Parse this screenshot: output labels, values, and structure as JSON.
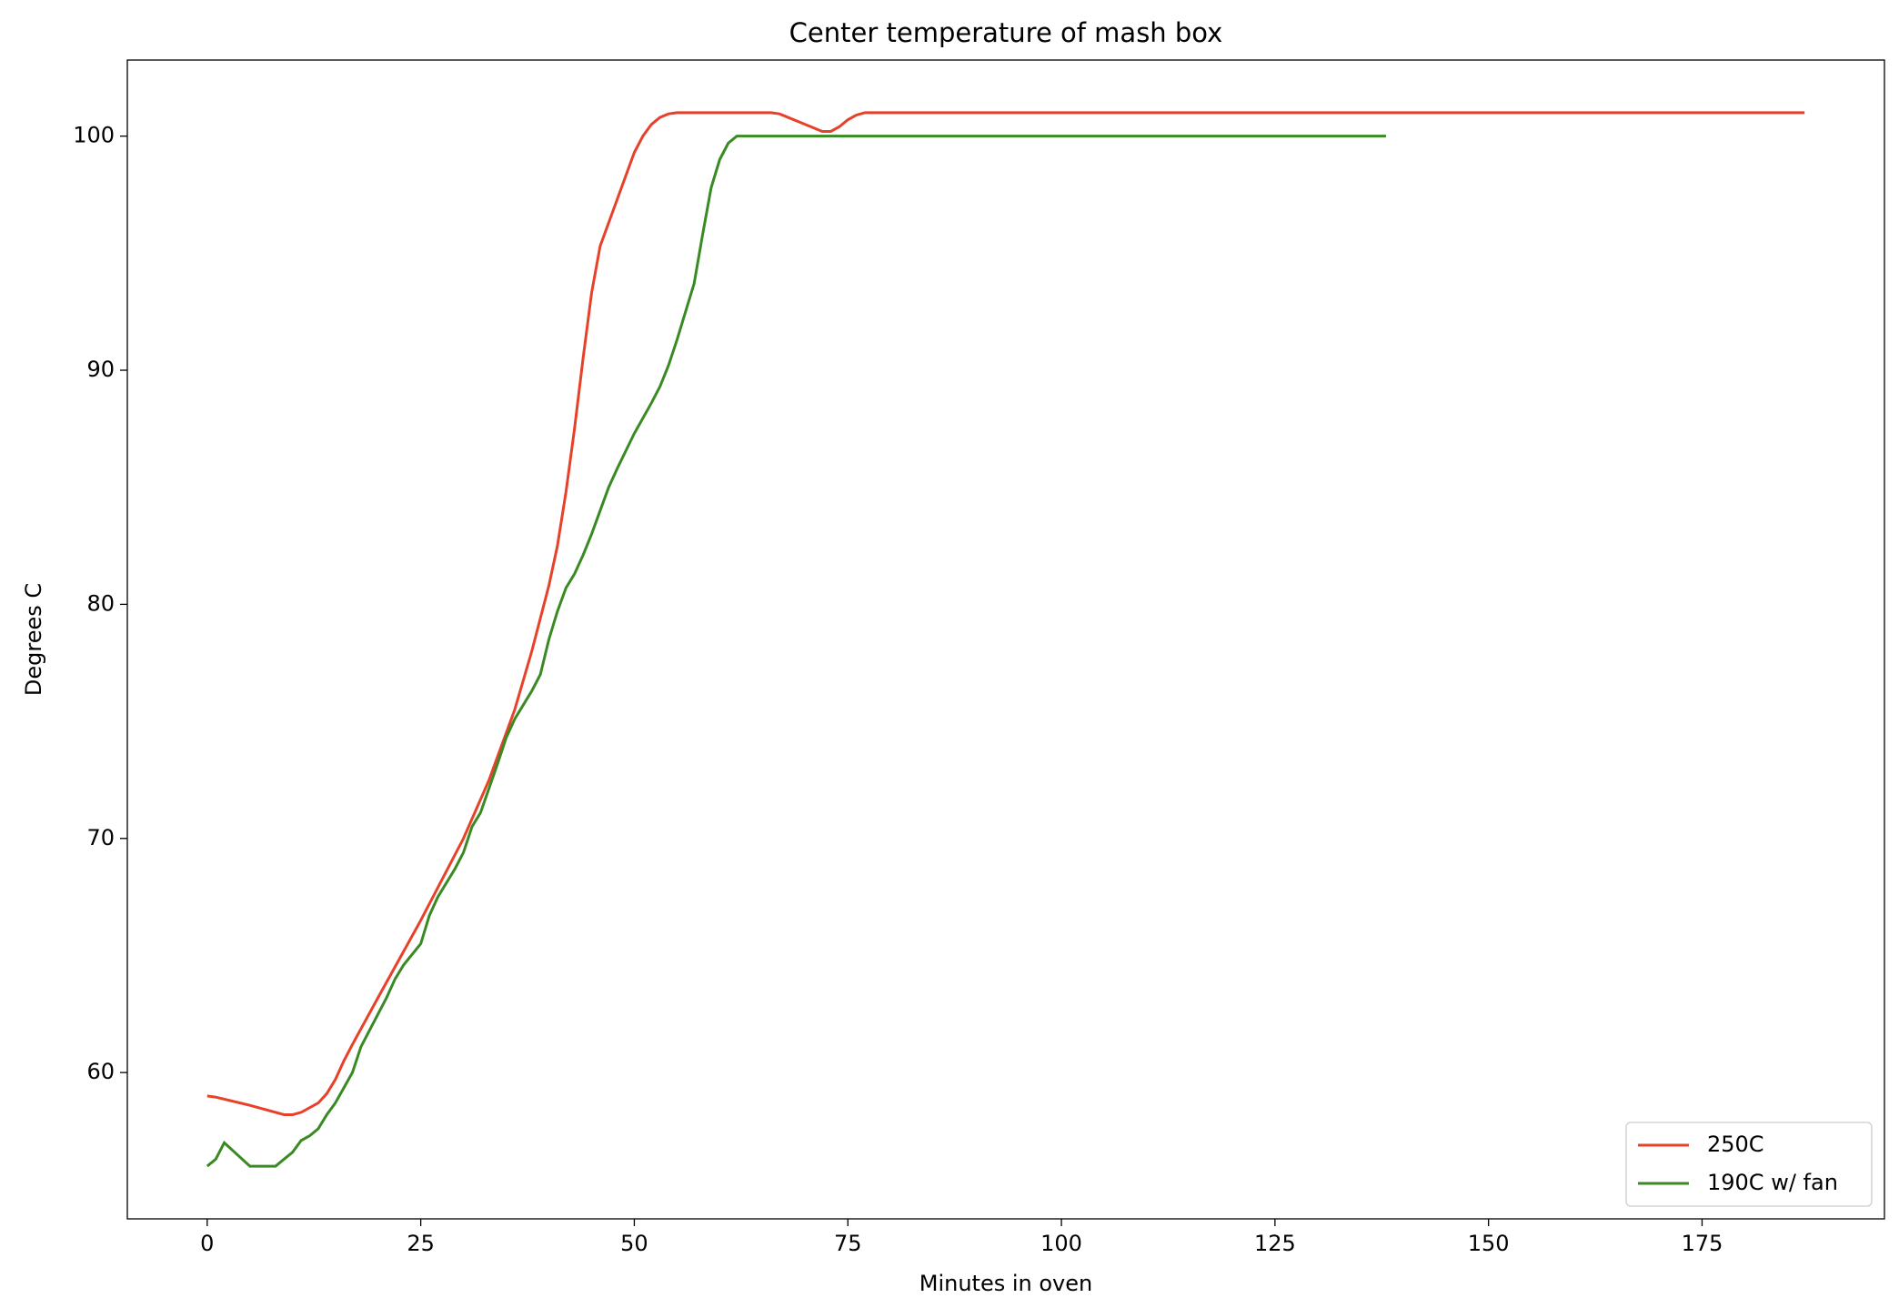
{
  "chart_data": {
    "type": "line",
    "title": "Center temperature of mash box",
    "xlabel": "Minutes in oven",
    "ylabel": "Degrees C",
    "xlim": [
      -9.35,
      196.35
    ],
    "xticks": [
      0,
      25,
      50,
      75,
      100,
      125,
      150,
      175
    ],
    "ylim": [
      53.75,
      103.25
    ],
    "yticks": [
      60,
      70,
      80,
      90,
      100
    ],
    "grid": false,
    "legend": "lower right",
    "series": [
      {
        "name": "250C",
        "color": "#e8412a",
        "x": [
          0,
          1,
          5,
          9,
          10,
          11,
          13,
          14,
          15,
          16,
          17,
          20,
          25,
          30,
          33,
          36,
          38,
          40,
          41,
          42,
          43,
          44,
          45,
          46,
          48,
          50,
          51,
          52,
          53,
          54,
          55,
          66,
          67,
          68,
          70,
          72,
          73,
          74,
          75,
          76,
          77,
          187
        ],
        "values": [
          59,
          58.95,
          58.6,
          58.2,
          58.2,
          58.3,
          58.7,
          59.1,
          59.7,
          60.5,
          61.2,
          63.2,
          66.5,
          70,
          72.5,
          75.5,
          78,
          80.8,
          82.5,
          84.8,
          87.5,
          90.5,
          93.3,
          95.3,
          97.3,
          99.3,
          100,
          100.5,
          100.8,
          100.95,
          101,
          101,
          100.95,
          100.8,
          100.5,
          100.2,
          100.2,
          100.4,
          100.7,
          100.9,
          101,
          101
        ]
      },
      {
        "name": "190C w/ fan",
        "color": "#3a8a24",
        "x": [
          0,
          1,
          2,
          5,
          8,
          10,
          11,
          12,
          13,
          14,
          15,
          17,
          18,
          20,
          21,
          22,
          23,
          25,
          26,
          27,
          29,
          30,
          31,
          32,
          34,
          35,
          36,
          38,
          39,
          40,
          41,
          42,
          43,
          44,
          45,
          46,
          47,
          48,
          50,
          52,
          53,
          54,
          55,
          57,
          58,
          59,
          60,
          61,
          62,
          138
        ],
        "values": [
          56,
          56.3,
          57,
          56,
          56,
          56.6,
          57.1,
          57.3,
          57.6,
          58.2,
          58.7,
          60,
          61.1,
          62.5,
          63.2,
          64,
          64.6,
          65.5,
          66.7,
          67.5,
          68.7,
          69.4,
          70.5,
          71.1,
          73.2,
          74.3,
          75.1,
          76.3,
          77,
          78.5,
          79.7,
          80.7,
          81.3,
          82.1,
          83,
          84,
          85,
          85.8,
          87.3,
          88.6,
          89.3,
          90.2,
          91.3,
          93.7,
          95.8,
          97.8,
          99,
          99.7,
          100,
          100
        ]
      }
    ]
  }
}
